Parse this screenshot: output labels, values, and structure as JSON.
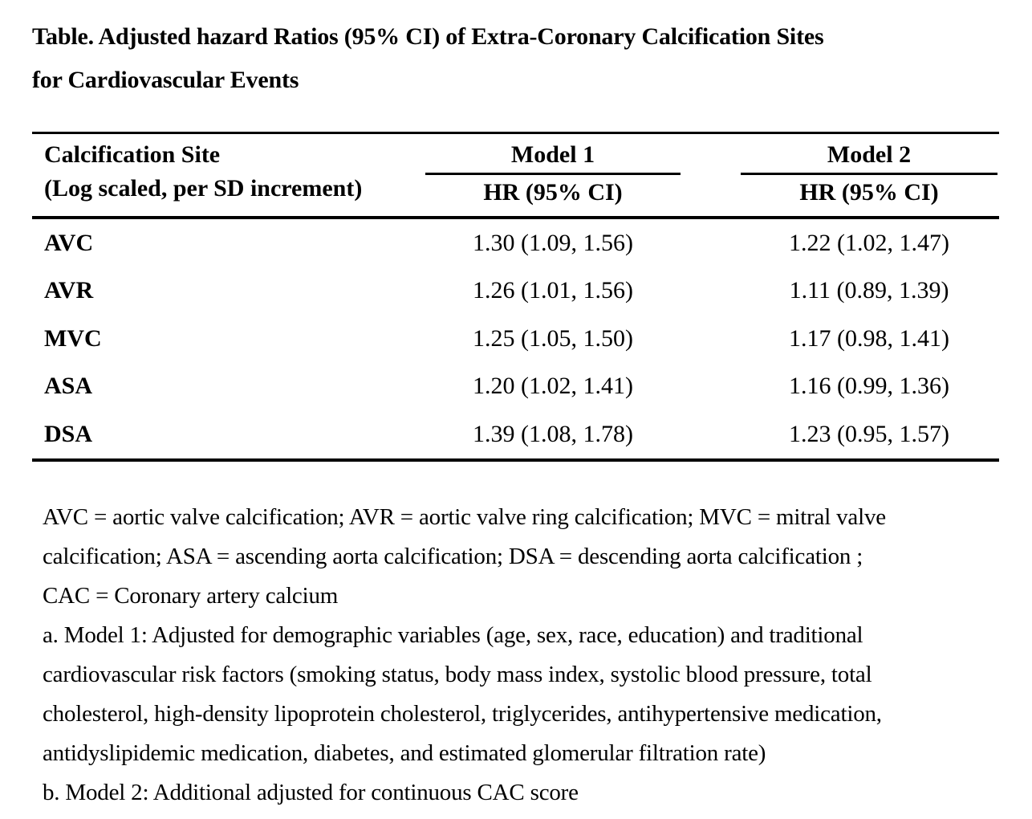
{
  "title": {
    "lines": [
      "Table. Adjusted hazard Ratios (95% CI) of Extra-Coronary Calcification Sites",
      "for Cardiovascular Events"
    ]
  },
  "table": {
    "site_header": {
      "line1": "Calcification Site",
      "line2": "(Log scaled, per SD increment)"
    },
    "model_columns": [
      {
        "name": "Model 1",
        "subheader": "HR (95% CI)"
      },
      {
        "name": "Model 2",
        "subheader": "HR (95% CI)"
      }
    ],
    "rows": [
      {
        "site": "AVC",
        "model1": "1.30 (1.09, 1.56)",
        "model2": "1.22 (1.02, 1.47)"
      },
      {
        "site": "AVR",
        "model1": "1.26 (1.01, 1.56)",
        "model2": "1.11 (0.89, 1.39)"
      },
      {
        "site": "MVC",
        "model1": "1.25 (1.05, 1.50)",
        "model2": "1.17 (0.98, 1.41)"
      },
      {
        "site": "ASA",
        "model1": "1.20 (1.02, 1.41)",
        "model2": "1.16 (0.99, 1.36)"
      },
      {
        "site": "DSA",
        "model1": "1.39 (1.08, 1.78)",
        "model2": "1.23 (0.95, 1.57)"
      }
    ]
  },
  "footnotes": {
    "lines": [
      "AVC = aortic valve calcification; AVR = aortic valve ring calcification; MVC = mitral valve",
      "calcification; ASA = ascending aorta calcification; DSA = descending aorta calcification ;",
      "CAC = Coronary artery calcium",
      "a. Model 1: Adjusted for demographic variables (age, sex, race, education) and traditional",
      "cardiovascular risk factors (smoking status, body mass index, systolic blood pressure, total",
      "cholesterol, high-density lipoprotein cholesterol, triglycerides, antihypertensive medication,",
      "antidyslipidemic medication, diabetes, and estimated glomerular filtration rate)",
      "b. Model 2: Additional adjusted for continuous CAC score"
    ]
  },
  "colors": {
    "text": "#000000",
    "background": "#ffffff",
    "rule": "#000000"
  }
}
